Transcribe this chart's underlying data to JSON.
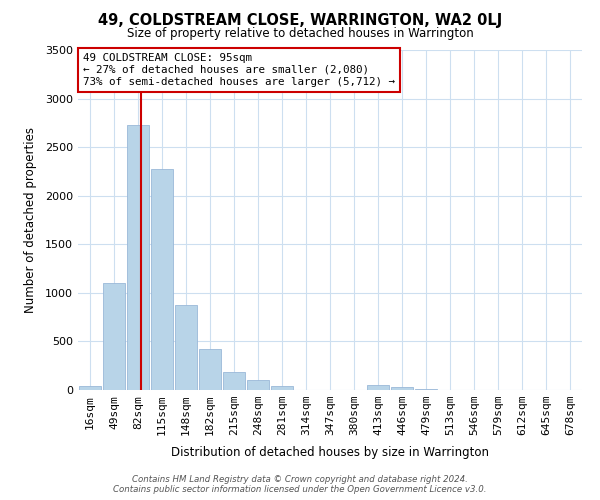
{
  "title": "49, COLDSTREAM CLOSE, WARRINGTON, WA2 0LJ",
  "subtitle": "Size of property relative to detached houses in Warrington",
  "xlabel": "Distribution of detached houses by size in Warrington",
  "ylabel": "Number of detached properties",
  "bar_labels": [
    "16sqm",
    "49sqm",
    "82sqm",
    "115sqm",
    "148sqm",
    "182sqm",
    "215sqm",
    "248sqm",
    "281sqm",
    "314sqm",
    "347sqm",
    "380sqm",
    "413sqm",
    "446sqm",
    "479sqm",
    "513sqm",
    "546sqm",
    "579sqm",
    "612sqm",
    "645sqm",
    "678sqm"
  ],
  "bar_values": [
    40,
    1100,
    2730,
    2270,
    870,
    420,
    185,
    100,
    40,
    5,
    0,
    0,
    50,
    30,
    10,
    0,
    0,
    0,
    0,
    0,
    0
  ],
  "bar_color": "#b8d4e8",
  "bar_edge_color": "#9ab8d8",
  "vline_index": 2,
  "vline_color": "#cc0000",
  "ylim": [
    0,
    3500
  ],
  "yticks": [
    0,
    500,
    1000,
    1500,
    2000,
    2500,
    3000,
    3500
  ],
  "annotation_line1": "49 COLDSTREAM CLOSE: 95sqm",
  "annotation_line2": "← 27% of detached houses are smaller (2,080)",
  "annotation_line3": "73% of semi-detached houses are larger (5,712) →",
  "annotation_box_color": "#ffffff",
  "annotation_box_edge": "#cc0000",
  "footer_line1": "Contains HM Land Registry data © Crown copyright and database right 2024.",
  "footer_line2": "Contains public sector information licensed under the Open Government Licence v3.0.",
  "bg_color": "#ffffff",
  "grid_color": "#cddff0"
}
